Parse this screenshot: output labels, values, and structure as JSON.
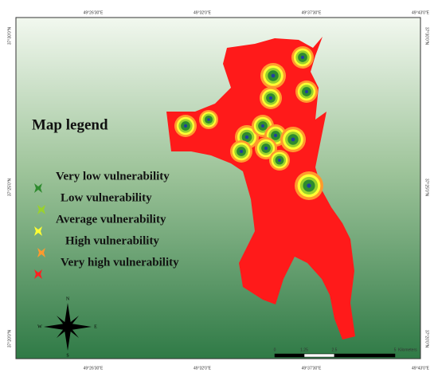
{
  "legend": {
    "title": "Map legend",
    "items": [
      {
        "label": "Very low vulnerability",
        "color": "#2e8b2e"
      },
      {
        "label": "Low vulnerability",
        "color": "#9ad22c"
      },
      {
        "label": "Average vulnerability",
        "color": "#ffff33"
      },
      {
        "label": "High vulnerability",
        "color": "#ff9a2e"
      },
      {
        "label": "Very high vulnerability",
        "color": "#ff2020"
      }
    ]
  },
  "coordinates": {
    "longitudes": [
      "49°26'30\"E",
      "49°32'0\"E",
      "49°37'30\"E",
      "49°43'0\"E"
    ],
    "latitudes": [
      "37°30'0\"N",
      "37°25'0\"N",
      "37°20'0\"N"
    ]
  },
  "compass": {
    "north": "N",
    "south": "S",
    "east": "E",
    "west": "W"
  },
  "scale_bar": {
    "labels": [
      "0",
      "1.25",
      "2.5",
      "5"
    ],
    "unit": "Kilometers"
  }
}
